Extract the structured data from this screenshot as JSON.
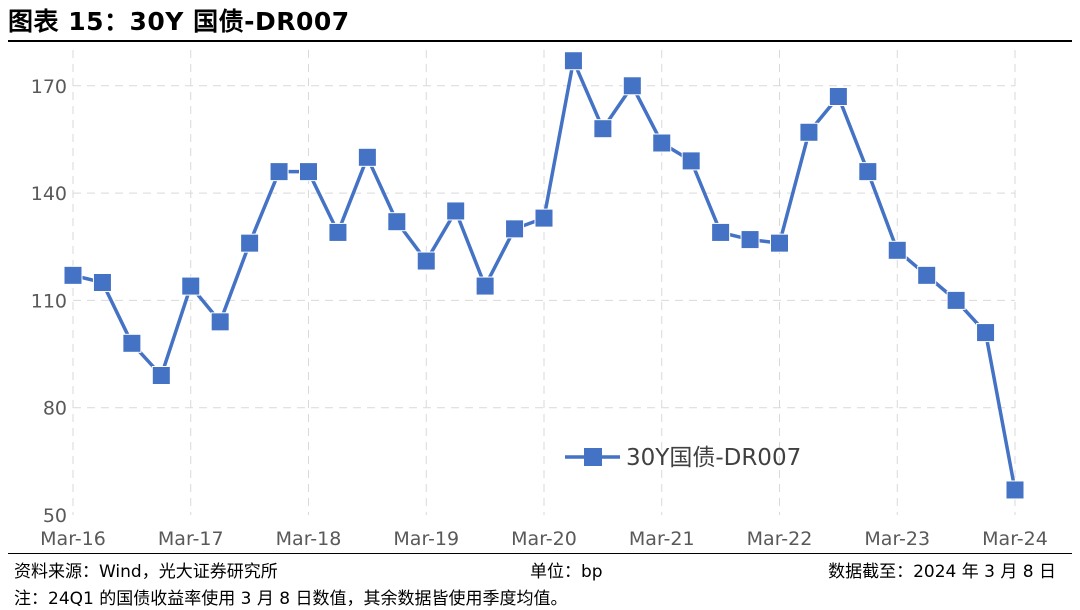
{
  "figure": {
    "title": "图表 15：30Y 国债-DR007"
  },
  "footer": {
    "source": "资料来源：Wind，光大证券研究所",
    "unit": "单位：bp",
    "date": "数据截至：2024 年 3 月 8 日",
    "note": "注：24Q1 的国债收益率使用 3 月 8 日数值，其余数据皆使用季度均值。"
  },
  "colors": {
    "series": "#4472C4",
    "grid": "#D9D9D9",
    "tick": "#595959"
  },
  "chart_data": {
    "type": "line",
    "title": "",
    "xlabel": "",
    "ylabel": "",
    "ylim": [
      50,
      180
    ],
    "yticks": [
      50,
      80,
      110,
      140,
      170
    ],
    "x_tick_labels": [
      "Mar-16",
      "Mar-17",
      "Mar-18",
      "Mar-19",
      "Mar-20",
      "Mar-21",
      "Mar-22",
      "Mar-23",
      "Mar-24"
    ],
    "grid": true,
    "legend_position": "bottom-right",
    "marker": "square",
    "x": [
      "Mar-16",
      "Jun-16",
      "Sep-16",
      "Dec-16",
      "Mar-17",
      "Jun-17",
      "Sep-17",
      "Dec-17",
      "Mar-18",
      "Jun-18",
      "Sep-18",
      "Dec-18",
      "Mar-19",
      "Jun-19",
      "Sep-19",
      "Dec-19",
      "Mar-20",
      "Jun-20",
      "Sep-20",
      "Dec-20",
      "Mar-21",
      "Jun-21",
      "Sep-21",
      "Dec-21",
      "Mar-22",
      "Jun-22",
      "Sep-22",
      "Dec-22",
      "Mar-23",
      "Jun-23",
      "Sep-23",
      "Dec-23",
      "Mar-24"
    ],
    "series": [
      {
        "name": "30Y国债-DR007",
        "values": [
          117,
          115,
          98,
          89,
          114,
          104,
          126,
          146,
          146,
          129,
          150,
          132,
          121,
          135,
          114,
          130,
          133,
          177,
          158,
          170,
          154,
          149,
          129,
          127,
          126,
          157,
          167,
          146,
          124,
          117,
          110,
          101,
          57
        ]
      }
    ]
  }
}
